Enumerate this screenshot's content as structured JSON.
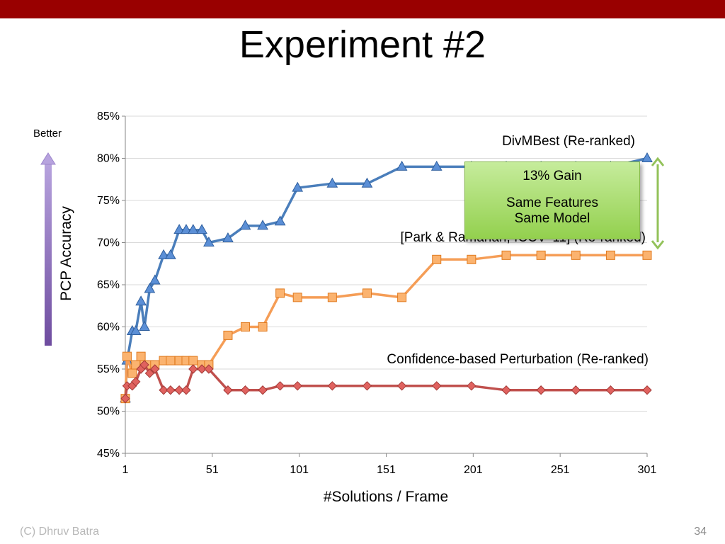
{
  "slide": {
    "title": "Experiment #2",
    "footer_left": "(C) Dhruv Batra",
    "page_number": "34",
    "better_label": "Better",
    "header_color": "#990000"
  },
  "annotation": {
    "line1": "13% Gain",
    "line2": "Same Features",
    "line3": "Same Model"
  },
  "chart_data": {
    "type": "line",
    "xlabel": "#Solutions / Frame",
    "ylabel": "PCP Accuracy",
    "xlim": [
      1,
      301
    ],
    "ylim": [
      45,
      85
    ],
    "x_ticks": [
      1,
      51,
      101,
      151,
      201,
      251,
      301
    ],
    "y_ticks": [
      45,
      50,
      55,
      60,
      65,
      70,
      75,
      80,
      85
    ],
    "y_tick_labels": [
      "45%",
      "50%",
      "55%",
      "60%",
      "65%",
      "70%",
      "75%",
      "80%",
      "85%"
    ],
    "x_tick_labels": [
      "1",
      "51",
      "101",
      "151",
      "201",
      "251",
      "301"
    ],
    "grid": "horizontal",
    "series": [
      {
        "name": "DivMBest (Re-ranked)",
        "color": "#4a7ebb",
        "marker": "triangle",
        "x": [
          1,
          2,
          5,
          7,
          10,
          12,
          15,
          18,
          23,
          27,
          32,
          36,
          40,
          45,
          49,
          60,
          70,
          80,
          90,
          100,
          120,
          140,
          160,
          180,
          200,
          220,
          240,
          260,
          280,
          301
        ],
        "y": [
          51.5,
          56,
          59.5,
          59.5,
          63,
          60,
          64.5,
          65.5,
          68.5,
          68.5,
          71.5,
          71.5,
          71.5,
          71.5,
          70,
          70.5,
          72,
          72,
          72.5,
          76.5,
          77,
          77,
          79,
          79,
          79,
          79,
          79,
          79,
          79,
          80
        ]
      },
      {
        "name": "[Park & Ramanan, ICCV '11] (Re-ranked)",
        "color": "#f59d56",
        "marker": "square",
        "x": [
          1,
          2,
          5,
          7,
          10,
          12,
          15,
          18,
          23,
          27,
          32,
          36,
          40,
          45,
          49,
          60,
          70,
          80,
          90,
          100,
          120,
          140,
          160,
          180,
          200,
          220,
          240,
          260,
          280,
          301
        ],
        "y": [
          51.5,
          56.5,
          54.5,
          55.5,
          56.5,
          55.5,
          55.5,
          55.5,
          56,
          56,
          56,
          56,
          56,
          55.5,
          55.5,
          59,
          60,
          60,
          64,
          63.5,
          63.5,
          64,
          63.5,
          68,
          68,
          68.5,
          68.5,
          68.5,
          68.5,
          68.5
        ]
      },
      {
        "name": "Confidence-based Perturbation (Re-ranked)",
        "color": "#c0504d",
        "marker": "diamond",
        "x": [
          1,
          2,
          5,
          7,
          10,
          12,
          15,
          18,
          23,
          27,
          32,
          36,
          40,
          45,
          49,
          60,
          70,
          80,
          90,
          100,
          120,
          140,
          160,
          180,
          200,
          220,
          240,
          260,
          280,
          301
        ],
        "y": [
          51.5,
          53,
          53,
          53.5,
          55,
          55.5,
          54.5,
          55,
          52.5,
          52.5,
          52.5,
          52.5,
          55,
          55,
          55,
          52.5,
          52.5,
          52.5,
          53,
          53,
          53,
          53,
          53,
          53,
          53,
          52.5,
          52.5,
          52.5,
          52.5,
          52.5
        ]
      }
    ]
  }
}
